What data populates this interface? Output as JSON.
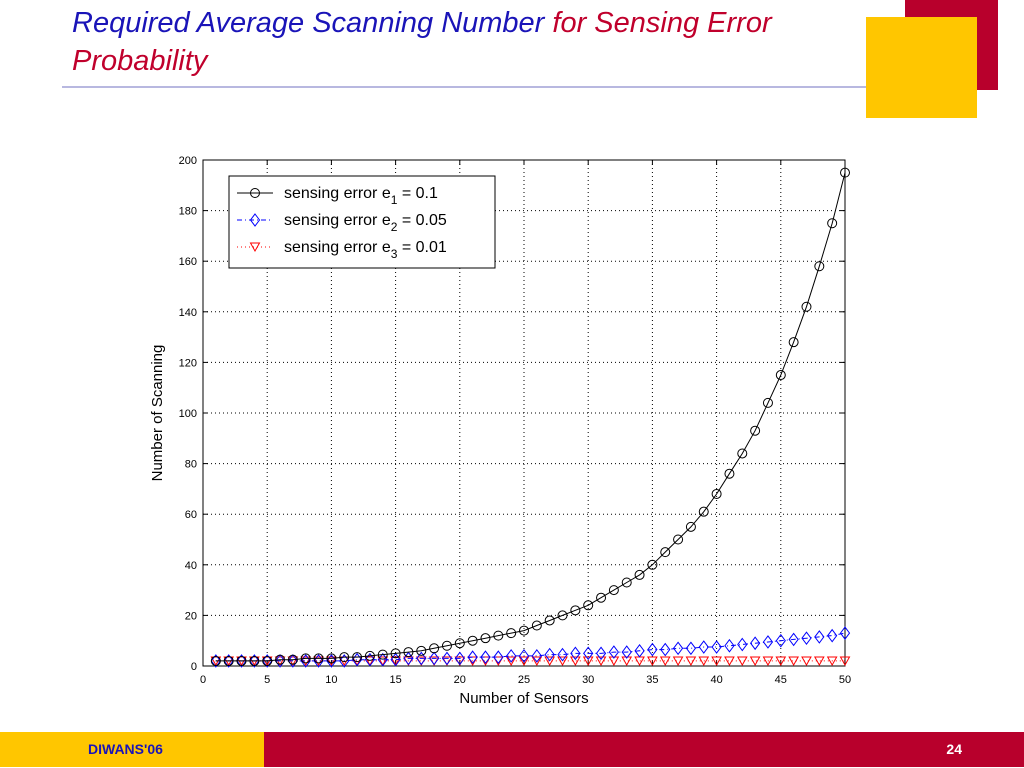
{
  "slide": {
    "title_part1": "Required Average Scanning Number ",
    "title_part2": "for Sensing Error Probability",
    "footer_label": "DIWANS'06",
    "page_number": "24"
  },
  "colors": {
    "title_blue": "#1a14b8",
    "title_red": "#c0002c",
    "accent_red": "#b8002c",
    "accent_yellow": "#ffc600",
    "series1": "#000000",
    "series2": "#0000ff",
    "series3": "#ff0000"
  },
  "chart_data": {
    "type": "line",
    "xlabel": "Number of Sensors",
    "ylabel": "Number of Scanning",
    "xlim": [
      0,
      50
    ],
    "ylim": [
      0,
      200
    ],
    "xticks": [
      0,
      5,
      10,
      15,
      20,
      25,
      30,
      35,
      40,
      45,
      50
    ],
    "yticks": [
      0,
      20,
      40,
      60,
      80,
      100,
      120,
      140,
      160,
      180,
      200
    ],
    "grid": true,
    "legend_position": "top-left",
    "x": [
      1,
      2,
      3,
      4,
      5,
      6,
      7,
      8,
      9,
      10,
      11,
      12,
      13,
      14,
      15,
      16,
      17,
      18,
      19,
      20,
      21,
      22,
      23,
      24,
      25,
      26,
      27,
      28,
      29,
      30,
      31,
      32,
      33,
      34,
      35,
      36,
      37,
      38,
      39,
      40,
      41,
      42,
      43,
      44,
      45,
      46,
      47,
      48,
      49,
      50
    ],
    "series": [
      {
        "name": "sensing error e1 = 0.1",
        "legend_main": "sensing error e",
        "legend_sub": "1",
        "legend_tail": " = 0.1",
        "color": "#000000",
        "marker": "circle",
        "line": "solid",
        "values": [
          2,
          2,
          2,
          2,
          2,
          2.5,
          2.5,
          3,
          3,
          3,
          3.5,
          3.5,
          4,
          4.5,
          5,
          5.5,
          6,
          7,
          8,
          9,
          10,
          11,
          12,
          13,
          14,
          16,
          18,
          20,
          22,
          24,
          27,
          30,
          33,
          36,
          40,
          45,
          50,
          55,
          61,
          68,
          76,
          84,
          93,
          104,
          115,
          128,
          142,
          158,
          175,
          195
        ]
      },
      {
        "name": "sensing error e2 = 0.05",
        "legend_main": "sensing error e",
        "legend_sub": "2",
        "legend_tail": " = 0.05",
        "color": "#0000ff",
        "marker": "diamond",
        "line": "dashdot",
        "values": [
          2,
          2,
          2,
          2,
          2,
          2,
          2,
          2,
          2,
          2,
          2,
          2.5,
          2.5,
          2.5,
          2.5,
          3,
          3,
          3,
          3,
          3,
          3.5,
          3.5,
          3.5,
          4,
          4,
          4,
          4.5,
          4.5,
          5,
          5,
          5,
          5.5,
          5.5,
          6,
          6.5,
          6.5,
          7,
          7,
          7.5,
          7.5,
          8,
          8.5,
          9,
          9.5,
          10,
          10.5,
          11,
          11.5,
          12,
          13
        ]
      },
      {
        "name": "sensing error e3 = 0.01",
        "legend_main": "sensing error e",
        "legend_sub": "3",
        "legend_tail": " = 0.01",
        "color": "#ff0000",
        "marker": "triangle-down",
        "line": "dotted",
        "values": [
          2,
          2,
          2,
          2,
          2,
          2,
          2,
          2,
          2,
          2,
          2,
          2,
          2,
          2,
          2,
          2,
          2,
          2,
          2,
          2,
          2,
          2,
          2,
          2,
          2,
          2,
          2,
          2,
          2,
          2,
          2,
          2,
          2,
          2,
          2,
          2,
          2,
          2,
          2,
          2,
          2,
          2,
          2,
          2,
          2,
          2,
          2,
          2,
          2,
          2
        ]
      }
    ]
  }
}
